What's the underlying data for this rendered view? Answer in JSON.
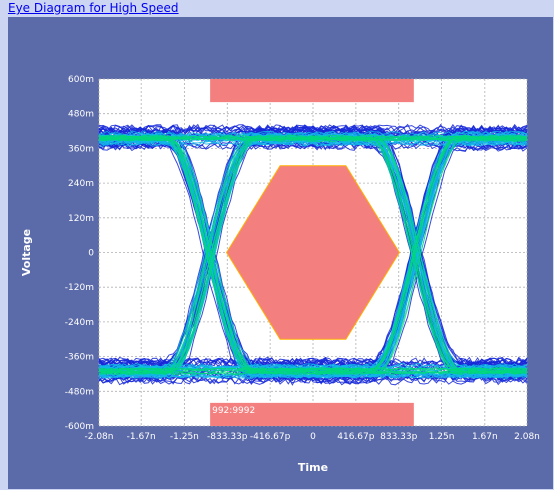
{
  "window": {
    "title_link": "Eye Diagram for High Speed"
  },
  "colors": {
    "panel_bg": "#5b6aa8",
    "plot_bg": "#ffffff",
    "mask": "#f47f7f",
    "mask_border": "#ffb000",
    "trace_dense": "#00d87a",
    "trace_mid": "#10b8e8",
    "trace_sparse": "#1628d8"
  },
  "chart_data": {
    "type": "eye-diagram",
    "xlabel": "Time",
    "ylabel": "Voltage",
    "xlim": [
      -2.08,
      2.08
    ],
    "x_unit": "ns",
    "ylim": [
      -600,
      600
    ],
    "y_unit": "mV",
    "grid": true,
    "x_ticks": [
      {
        "value": -2.08,
        "label": "-2.08n"
      },
      {
        "value": -1.67,
        "label": "-1.67n"
      },
      {
        "value": -1.25,
        "label": "-1.25n"
      },
      {
        "value": -0.83333,
        "label": "-833.33p"
      },
      {
        "value": -0.41667,
        "label": "-416.67p"
      },
      {
        "value": 0,
        "label": "0"
      },
      {
        "value": 0.41667,
        "label": "416.67p"
      },
      {
        "value": 0.83333,
        "label": "833.33p"
      },
      {
        "value": 1.25,
        "label": "1.25n"
      },
      {
        "value": 1.67,
        "label": "1.67n"
      },
      {
        "value": 2.08,
        "label": "2.08n"
      }
    ],
    "y_ticks": [
      {
        "value": 600,
        "label": "600m"
      },
      {
        "value": 480,
        "label": "480m"
      },
      {
        "value": 360,
        "label": "360m"
      },
      {
        "value": 240,
        "label": "240m"
      },
      {
        "value": 120,
        "label": "120m"
      },
      {
        "value": 0,
        "label": "0"
      },
      {
        "value": -120,
        "label": "-120m"
      },
      {
        "value": -240,
        "label": "-240m"
      },
      {
        "value": -360,
        "label": "-360m"
      },
      {
        "value": -480,
        "label": "-480m"
      },
      {
        "value": -600,
        "label": "-600m"
      }
    ],
    "signal": {
      "high_level": 395,
      "low_level": -410,
      "crossings": [
        -1.0,
        1.0
      ],
      "unit_interval": 2.0
    },
    "masks": {
      "top_bar": {
        "x0": -1.0,
        "x1": 0.98,
        "y0": 520,
        "y1": 600
      },
      "bottom_bar": {
        "x0": -1.0,
        "x1": 0.98,
        "y0": -520,
        "y1": -600
      },
      "center_polygon": [
        [
          -0.84,
          0
        ],
        [
          -0.32,
          300
        ],
        [
          0.32,
          300
        ],
        [
          0.84,
          0
        ],
        [
          0.32,
          -300
        ],
        [
          -0.32,
          -300
        ]
      ]
    },
    "mask_label": "992:9992"
  }
}
